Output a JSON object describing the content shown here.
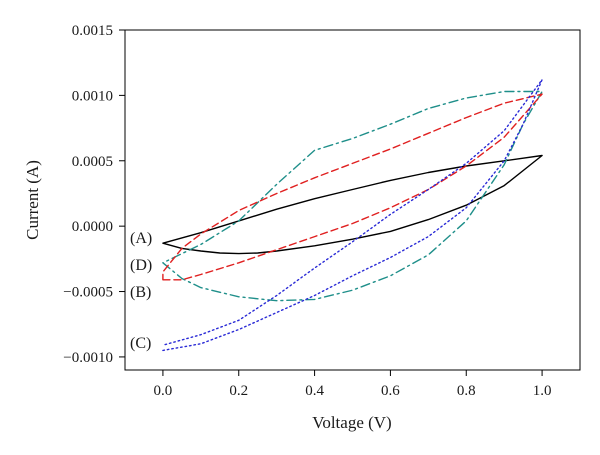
{
  "chart_data": {
    "type": "line",
    "title": "",
    "xlabel": "Voltage (V)",
    "ylabel": "Current (A)",
    "xlim": [
      -0.1,
      1.1
    ],
    "ylim": [
      -0.0011,
      0.0015
    ],
    "x_ticks": [
      0.0,
      0.2,
      0.4,
      0.6,
      0.8,
      1.0
    ],
    "x_tick_labels": [
      "0.0",
      "0.2",
      "0.4",
      "0.6",
      "0.8",
      "1.0"
    ],
    "y_ticks": [
      -0.001,
      -0.0005,
      0.0,
      0.0005,
      0.001,
      0.0015
    ],
    "y_tick_labels": [
      "−0.0010",
      "−0.0005",
      "0.0000",
      "0.0005",
      "0.0010",
      "0.0015"
    ],
    "grid": false,
    "legend": "none",
    "series": [
      {
        "label": "(A)",
        "color": "#000000",
        "dash": "solid",
        "points": [
          [
            0.0,
            -0.00013
          ],
          [
            0.05,
            -0.00017
          ],
          [
            0.1,
            -0.00019
          ],
          [
            0.15,
            -0.000205
          ],
          [
            0.2,
            -0.00021
          ],
          [
            0.25,
            -0.000205
          ],
          [
            0.3,
            -0.00019
          ],
          [
            0.4,
            -0.00015
          ],
          [
            0.5,
            -0.0001
          ],
          [
            0.6,
            -4e-05
          ],
          [
            0.7,
            5e-05
          ],
          [
            0.8,
            0.00016
          ],
          [
            0.9,
            0.00031
          ],
          [
            1.0,
            0.00054
          ],
          [
            0.95,
            0.00052
          ],
          [
            0.9,
            0.0005
          ],
          [
            0.8,
            0.00046
          ],
          [
            0.7,
            0.00041
          ],
          [
            0.6,
            0.00035
          ],
          [
            0.5,
            0.00028
          ],
          [
            0.4,
            0.00021
          ],
          [
            0.3,
            0.00013
          ],
          [
            0.2,
            4e-05
          ],
          [
            0.1,
            -5e-05
          ],
          [
            0.0,
            -0.00013
          ]
        ]
      },
      {
        "label": "(D)",
        "color": "#1f8f8a",
        "dash": "dashdot",
        "points": [
          [
            0.0,
            -0.00028
          ],
          [
            0.05,
            -0.0004
          ],
          [
            0.1,
            -0.00047
          ],
          [
            0.2,
            -0.00054
          ],
          [
            0.3,
            -0.00057
          ],
          [
            0.4,
            -0.00056
          ],
          [
            0.5,
            -0.00049
          ],
          [
            0.6,
            -0.00038
          ],
          [
            0.7,
            -0.00022
          ],
          [
            0.8,
            4e-05
          ],
          [
            0.9,
            0.00047
          ],
          [
            0.95,
            0.00078
          ],
          [
            1.0,
            0.00103
          ],
          [
            0.9,
            0.00103
          ],
          [
            0.8,
            0.00098
          ],
          [
            0.7,
            0.0009
          ],
          [
            0.6,
            0.00078
          ],
          [
            0.5,
            0.00067
          ],
          [
            0.4,
            0.00058
          ],
          [
            0.3,
            0.00032
          ],
          [
            0.2,
            4e-05
          ],
          [
            0.1,
            -0.00014
          ],
          [
            0.0,
            -0.00028
          ]
        ]
      },
      {
        "label": "(B)",
        "color": "#e02020",
        "dash": "dashed",
        "points": [
          [
            0.0,
            -0.00041
          ],
          [
            0.05,
            -0.00041
          ],
          [
            0.1,
            -0.00037
          ],
          [
            0.2,
            -0.00028
          ],
          [
            0.3,
            -0.00018
          ],
          [
            0.4,
            -8e-05
          ],
          [
            0.5,
            2e-05
          ],
          [
            0.6,
            0.00014
          ],
          [
            0.7,
            0.00028
          ],
          [
            0.8,
            0.00046
          ],
          [
            0.9,
            0.00068
          ],
          [
            1.0,
            0.00101
          ],
          [
            0.9,
            0.00094
          ],
          [
            0.8,
            0.00083
          ],
          [
            0.7,
            0.00071
          ],
          [
            0.6,
            0.00059
          ],
          [
            0.5,
            0.00048
          ],
          [
            0.4,
            0.00037
          ],
          [
            0.3,
            0.00025
          ],
          [
            0.2,
            0.00012
          ],
          [
            0.1,
            -6e-05
          ],
          [
            0.05,
            -0.00017
          ],
          [
            0.0,
            -0.00035
          ],
          [
            0.0,
            -0.00041
          ]
        ]
      },
      {
        "label": "(C)",
        "color": "#2a2ad6",
        "dash": "dotted",
        "points": [
          [
            0.0,
            -0.00095
          ],
          [
            0.1,
            -0.0009
          ],
          [
            0.2,
            -0.00079
          ],
          [
            0.3,
            -0.00066
          ],
          [
            0.4,
            -0.00053
          ],
          [
            0.5,
            -0.00038
          ],
          [
            0.6,
            -0.00024
          ],
          [
            0.7,
            -8e-05
          ],
          [
            0.8,
            0.00014
          ],
          [
            0.9,
            0.0005
          ],
          [
            0.95,
            0.00078
          ],
          [
            1.0,
            0.00112
          ],
          [
            0.9,
            0.00073
          ],
          [
            0.8,
            0.00048
          ],
          [
            0.7,
            0.00028
          ],
          [
            0.6,
            9e-05
          ],
          [
            0.5,
            -0.00012
          ],
          [
            0.4,
            -0.00032
          ],
          [
            0.3,
            -0.00053
          ],
          [
            0.2,
            -0.00072
          ],
          [
            0.1,
            -0.00083
          ],
          [
            0.0,
            -0.00091
          ]
        ]
      }
    ]
  }
}
